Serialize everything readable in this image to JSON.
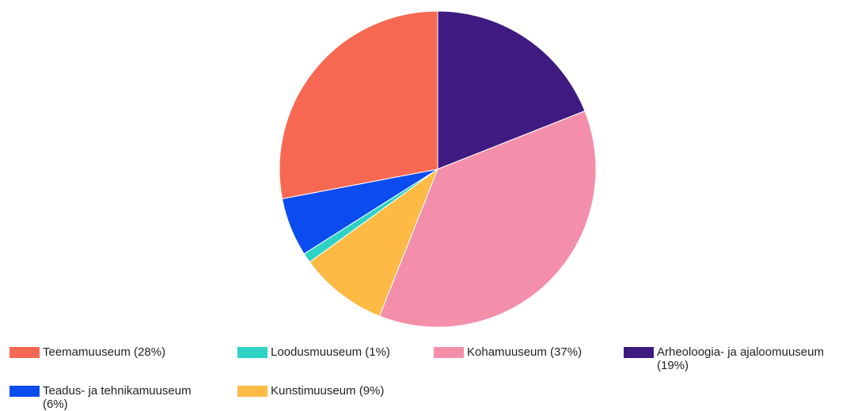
{
  "chart_data": {
    "type": "pie",
    "labels": [
      "Arheoloogia- ja ajaloomuuseum (19%)",
      "Kohamuuseum (37%)",
      "Kunstimuuseum (9%)",
      "Loodusmuuseum (1%)",
      "Teadus- ja tehnikamuuseum (6%)",
      "Teemamuuseum (28%)"
    ],
    "values": [
      19,
      37,
      9,
      1,
      6,
      28
    ],
    "colors": [
      "#3f1a80",
      "#f48fab",
      "#fdba45",
      "#2ed3c5",
      "#0b4cef",
      "#f76852"
    ]
  }
}
